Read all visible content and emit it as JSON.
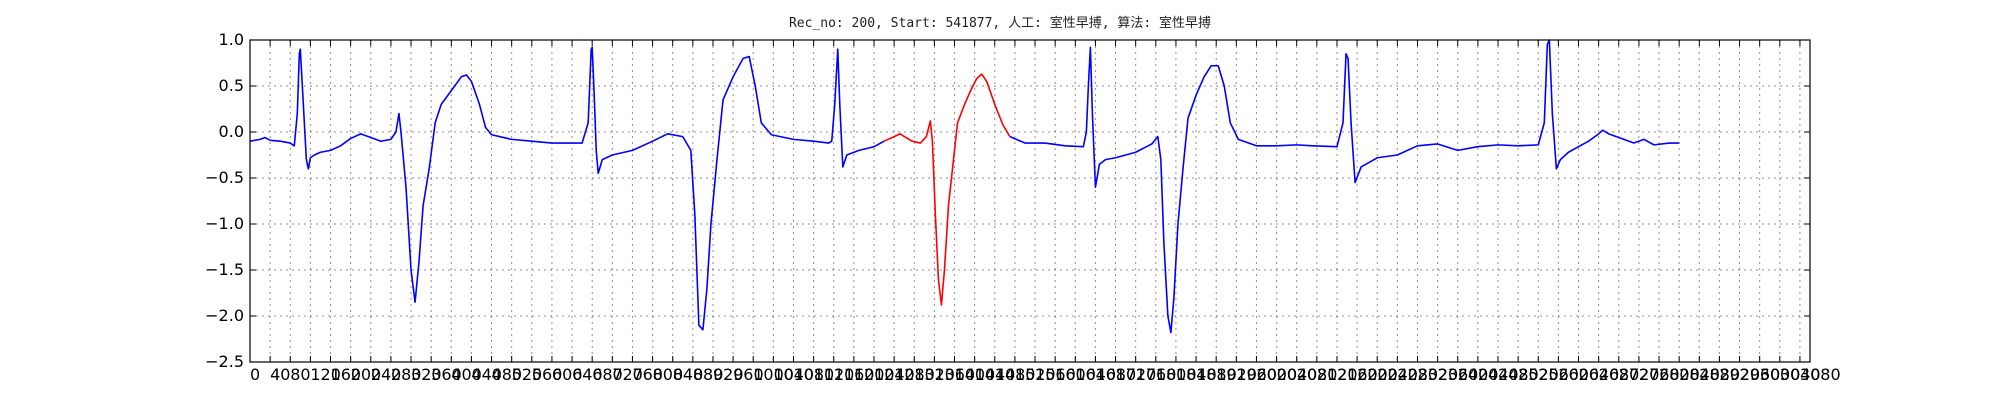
{
  "chart_data": {
    "type": "line",
    "title": "Rec_no: 200, Start: 541877, 人工: 室性早搏, 算法: 室性早搏",
    "xlabel": "",
    "ylabel": "",
    "xlim": [
      0,
      1550
    ],
    "ylim": [
      -2.5,
      1.0
    ],
    "y_ticks": [
      -2.5,
      -2.0,
      -1.5,
      -1.0,
      -0.5,
      0.0,
      0.5,
      1.0
    ],
    "y_tick_labels": [
      "−2.5",
      "−2.0",
      "−1.5",
      "−1.0",
      "−0.5",
      "0.0",
      "0.5",
      "1.0"
    ],
    "x_ticks": [
      0,
      20,
      40,
      60,
      80,
      100,
      120,
      140,
      160,
      180,
      200,
      220,
      240,
      260,
      280,
      300,
      320,
      340,
      360,
      380,
      400,
      420,
      440,
      460,
      480,
      500,
      520,
      540,
      560,
      580,
      600,
      620,
      640,
      660,
      680,
      700,
      720,
      740,
      760,
      780,
      800,
      820,
      840,
      860,
      880,
      900,
      920,
      940,
      960,
      980,
      1000,
      1020,
      1040,
      1060,
      1080,
      1100,
      1120,
      1140,
      1160,
      1180,
      1200,
      1220,
      1240,
      1260,
      1280,
      1300,
      1320,
      1340,
      1360,
      1380,
      1400,
      1420,
      1440,
      1460,
      1480,
      1500,
      1520,
      1540
    ],
    "x_tick_labels": [
      "0",
      "40",
      "80",
      "120",
      "160",
      "200",
      "240",
      "280",
      "320",
      "360",
      "400",
      "440",
      "480",
      "520",
      "560",
      "600",
      "640",
      "680",
      "720",
      "760",
      "800",
      "840",
      "880",
      "920",
      "960",
      "1000",
      "1040",
      "1080",
      "1120",
      "1160",
      "1200",
      "1240",
      "1280",
      "1320",
      "1360",
      "1400",
      "1440",
      "1480",
      "1520",
      "1560",
      "1600",
      "1640",
      "1680",
      "1720",
      "1760",
      "1800",
      "1840",
      "1880",
      "1920",
      "1960",
      "2000",
      "2040",
      "2080",
      "2120",
      "2160",
      "2200",
      "2240",
      "2280",
      "2320",
      "2360",
      "2400",
      "2440",
      "2480",
      "2520",
      "2560",
      "2600",
      "2640",
      "2680",
      "2720",
      "2760",
      "2800",
      "2840",
      "2880",
      "2920",
      "2960",
      "3000",
      "3040",
      "3080"
    ],
    "grid": true,
    "series": [
      {
        "color": "#0000ff",
        "segments": [
          [
            [
              0,
              -0.1
            ],
            [
              10,
              -0.08
            ],
            [
              15,
              -0.06
            ],
            [
              20,
              -0.09
            ],
            [
              30,
              -0.1
            ],
            [
              40,
              -0.12
            ],
            [
              44,
              -0.15
            ],
            [
              47,
              0.2
            ],
            [
              49,
              0.85
            ],
            [
              50,
              0.9
            ],
            [
              52,
              0.5
            ],
            [
              56,
              -0.3
            ],
            [
              58,
              -0.4
            ],
            [
              60,
              -0.28
            ],
            [
              64,
              -0.25
            ],
            [
              70,
              -0.22
            ],
            [
              80,
              -0.2
            ],
            [
              90,
              -0.15
            ],
            [
              100,
              -0.07
            ],
            [
              110,
              -0.02
            ],
            [
              120,
              -0.06
            ],
            [
              130,
              -0.1
            ],
            [
              140,
              -0.08
            ],
            [
              145,
              0.0
            ],
            [
              148,
              0.2
            ],
            [
              150,
              0.0
            ],
            [
              155,
              -0.6
            ],
            [
              160,
              -1.5
            ],
            [
              164,
              -1.85
            ],
            [
              168,
              -1.4
            ],
            [
              172,
              -0.8
            ],
            [
              178,
              -0.4
            ],
            [
              184,
              0.1
            ],
            [
              190,
              0.3
            ],
            [
              200,
              0.45
            ],
            [
              210,
              0.6
            ],
            [
              215,
              0.62
            ],
            [
              220,
              0.55
            ],
            [
              228,
              0.3
            ],
            [
              234,
              0.05
            ],
            [
              240,
              -0.03
            ],
            [
              260,
              -0.08
            ],
            [
              280,
              -0.1
            ],
            [
              300,
              -0.12
            ],
            [
              320,
              -0.12
            ],
            [
              330,
              -0.12
            ],
            [
              336,
              0.1
            ],
            [
              339,
              0.9
            ],
            [
              340,
              0.92
            ],
            [
              342,
              0.4
            ],
            [
              344,
              -0.2
            ],
            [
              346,
              -0.45
            ],
            [
              350,
              -0.3
            ],
            [
              360,
              -0.25
            ],
            [
              380,
              -0.2
            ],
            [
              400,
              -0.1
            ],
            [
              415,
              -0.02
            ],
            [
              430,
              -0.05
            ],
            [
              438,
              -0.2
            ],
            [
              442,
              -0.9
            ],
            [
              446,
              -2.1
            ],
            [
              450,
              -2.15
            ],
            [
              454,
              -1.7
            ],
            [
              458,
              -1.0
            ],
            [
              464,
              -0.3
            ],
            [
              470,
              0.35
            ],
            [
              480,
              0.6
            ],
            [
              490,
              0.8
            ],
            [
              496,
              0.82
            ],
            [
              502,
              0.5
            ],
            [
              508,
              0.1
            ],
            [
              518,
              -0.03
            ],
            [
              540,
              -0.08
            ],
            [
              560,
              -0.1
            ],
            [
              575,
              -0.12
            ],
            [
              578,
              -0.1
            ],
            [
              581,
              0.3
            ],
            [
              584,
              0.9
            ],
            [
              586,
              0.3
            ],
            [
              589,
              -0.38
            ],
            [
              593,
              -0.25
            ],
            [
              605,
              -0.2
            ],
            [
              620,
              -0.16
            ],
            [
              630,
              -0.1
            ]
          ]
        ]
      },
      {
        "color": "#ff0000",
        "segments": [
          [
            [
              630,
              -0.1
            ],
            [
              640,
              -0.05
            ],
            [
              646,
              -0.02
            ],
            [
              650,
              -0.05
            ],
            [
              658,
              -0.1
            ],
            [
              666,
              -0.12
            ],
            [
              672,
              -0.05
            ],
            [
              676,
              0.12
            ],
            [
              678,
              -0.1
            ],
            [
              681,
              -0.9
            ],
            [
              684,
              -1.6
            ],
            [
              687,
              -1.88
            ],
            [
              690,
              -1.5
            ],
            [
              694,
              -0.8
            ],
            [
              698,
              -0.4
            ],
            [
              703,
              0.1
            ],
            [
              710,
              0.3
            ],
            [
              716,
              0.45
            ],
            [
              722,
              0.58
            ],
            [
              727,
              0.63
            ],
            [
              732,
              0.55
            ],
            [
              740,
              0.3
            ],
            [
              748,
              0.08
            ],
            [
              755,
              -0.05
            ]
          ]
        ]
      },
      {
        "color": "#0000ff",
        "segments": [
          [
            [
              755,
              -0.05
            ],
            [
              770,
              -0.12
            ],
            [
              790,
              -0.12
            ],
            [
              810,
              -0.15
            ],
            [
              828,
              -0.16
            ],
            [
              831,
              0.0
            ],
            [
              833,
              0.5
            ],
            [
              835,
              0.92
            ],
            [
              837,
              0.2
            ],
            [
              840,
              -0.6
            ],
            [
              844,
              -0.35
            ],
            [
              850,
              -0.3
            ],
            [
              860,
              -0.28
            ],
            [
              880,
              -0.22
            ],
            [
              896,
              -0.13
            ],
            [
              902,
              -0.05
            ],
            [
              905,
              -0.3
            ],
            [
              908,
              -1.2
            ],
            [
              912,
              -2.0
            ],
            [
              915,
              -2.18
            ],
            [
              918,
              -1.8
            ],
            [
              922,
              -1.0
            ],
            [
              927,
              -0.4
            ],
            [
              932,
              0.15
            ],
            [
              940,
              0.4
            ],
            [
              948,
              0.6
            ],
            [
              955,
              0.72
            ],
            [
              962,
              0.72
            ],
            [
              968,
              0.5
            ],
            [
              974,
              0.1
            ],
            [
              982,
              -0.08
            ],
            [
              1000,
              -0.15
            ],
            [
              1020,
              -0.15
            ],
            [
              1040,
              -0.14
            ],
            [
              1056,
              -0.15
            ],
            [
              1080,
              -0.16
            ],
            [
              1086,
              0.1
            ],
            [
              1089,
              0.85
            ],
            [
              1091,
              0.8
            ],
            [
              1094,
              0.1
            ],
            [
              1098,
              -0.55
            ],
            [
              1104,
              -0.38
            ],
            [
              1120,
              -0.28
            ],
            [
              1140,
              -0.25
            ],
            [
              1160,
              -0.15
            ],
            [
              1180,
              -0.13
            ],
            [
              1200,
              -0.2
            ],
            [
              1220,
              -0.16
            ],
            [
              1240,
              -0.14
            ],
            [
              1260,
              -0.15
            ],
            [
              1280,
              -0.14
            ],
            [
              1286,
              0.1
            ],
            [
              1289,
              0.95
            ],
            [
              1291,
              1.0
            ],
            [
              1294,
              0.2
            ],
            [
              1298,
              -0.4
            ],
            [
              1302,
              -0.3
            ],
            [
              1310,
              -0.22
            ],
            [
              1320,
              -0.16
            ],
            [
              1330,
              -0.1
            ],
            [
              1340,
              -0.02
            ],
            [
              1344,
              0.02
            ],
            [
              1350,
              -0.02
            ],
            [
              1360,
              -0.06
            ],
            [
              1375,
              -0.12
            ],
            [
              1385,
              -0.08
            ],
            [
              1395,
              -0.14
            ],
            [
              1410,
              -0.12
            ],
            [
              1420,
              -0.12
            ]
          ]
        ]
      }
    ]
  }
}
